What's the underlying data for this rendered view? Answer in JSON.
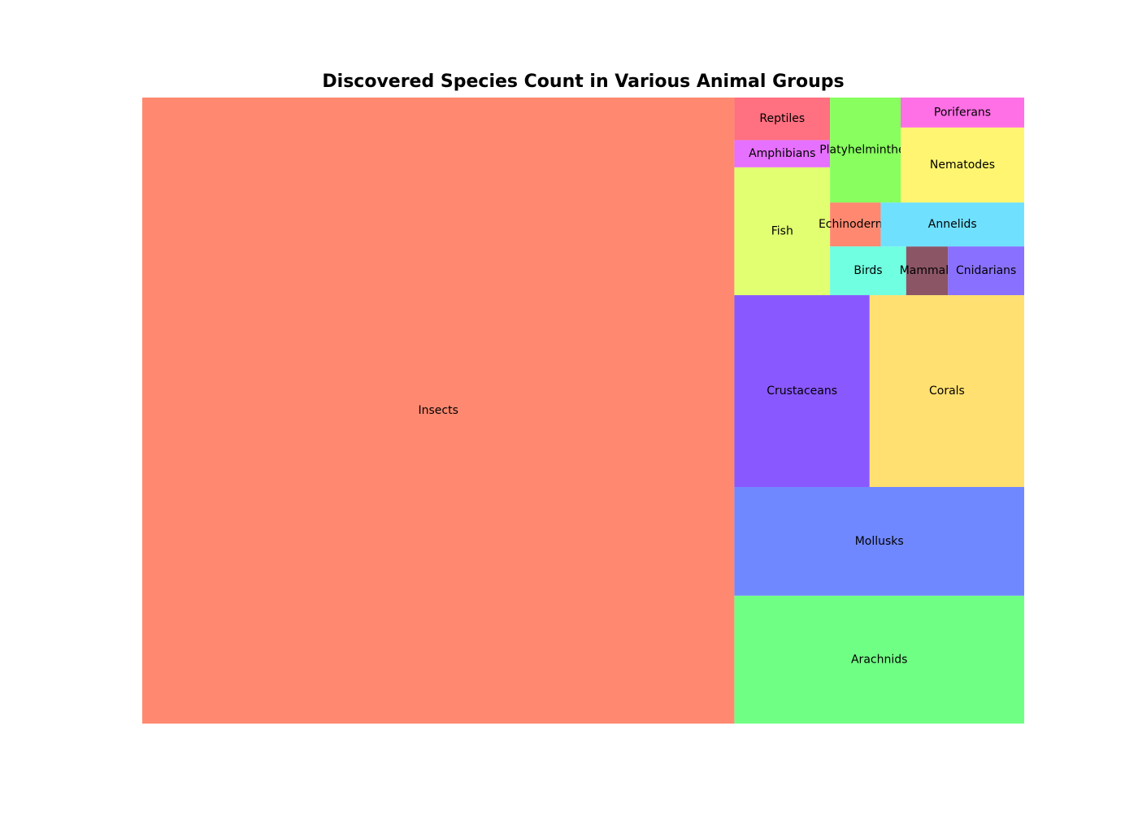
{
  "chart_data": {
    "type": "treemap",
    "title": "Discovered Species Count in Various Animal Groups",
    "xlabel": "",
    "ylabel": "",
    "grid": false,
    "legend": "none",
    "items": [
      {
        "name": "Insects",
        "value": 1000000,
        "color": "#FF8970"
      },
      {
        "name": "Arachnids",
        "value": 100000,
        "color": "#70FF85"
      },
      {
        "name": "Mollusks",
        "value": 85000,
        "color": "#7088FF"
      },
      {
        "name": "Crustaceans",
        "value": 70000,
        "color": "#8A58FF"
      },
      {
        "name": "Corals",
        "value": 80000,
        "color": "#FFE070"
      },
      {
        "name": "Fish",
        "value": 33000,
        "color": "#E1FF70"
      },
      {
        "name": "Reptiles",
        "value": 11000,
        "color": "#FF7080"
      },
      {
        "name": "Amphibians",
        "value": 7000,
        "color": "#E670FF"
      },
      {
        "name": "Platyhelminthes",
        "value": 20000,
        "color": "#88FF5E"
      },
      {
        "name": "Echinoderms",
        "value": 6000,
        "color": "#FF8970"
      },
      {
        "name": "Birds",
        "value": 10000,
        "color": "#70FFE0"
      },
      {
        "name": "Mammals",
        "value": 5500,
        "color": "#8B5566"
      },
      {
        "name": "Poriferans",
        "value": 10000,
        "color": "#FF70E6"
      },
      {
        "name": "Nematodes",
        "value": 25000,
        "color": "#FFF570"
      },
      {
        "name": "Annelids",
        "value": 17000,
        "color": "#70E0FF"
      },
      {
        "name": "Cnidarians",
        "value": 10000,
        "color": "#8A70FF"
      }
    ]
  }
}
